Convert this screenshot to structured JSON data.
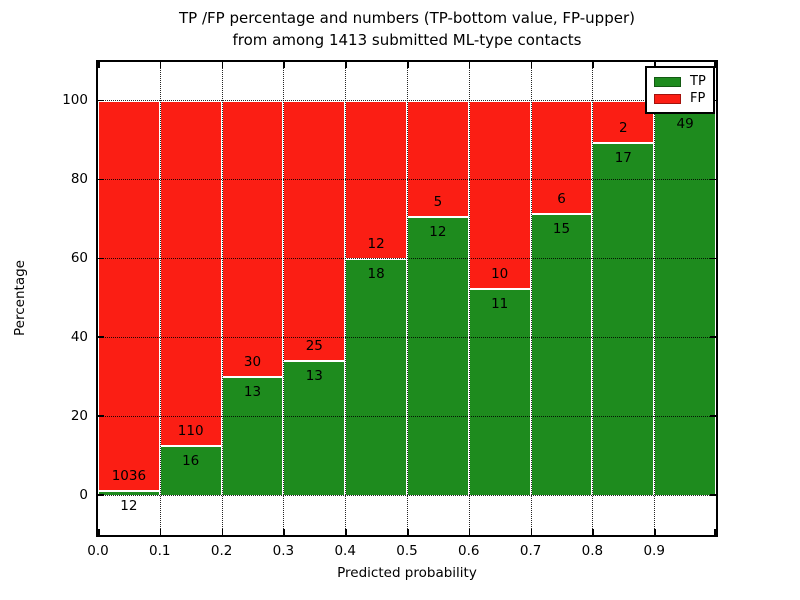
{
  "title": {
    "line1": "TP /FP percentage and numbers (TP-bottom value, FP-upper)",
    "line2": "from among 1413 submitted ML-type contacts"
  },
  "x_axis": {
    "label": "Predicted probability",
    "tick_labels": [
      "0.0",
      "0.1",
      "0.2",
      "0.3",
      "0.4",
      "0.5",
      "0.6",
      "0.7",
      "0.8",
      "0.9"
    ]
  },
  "y_axis": {
    "label": "Percentage",
    "tick_labels": [
      "0",
      "20",
      "40",
      "60",
      "80",
      "100"
    ],
    "tick_values": [
      0,
      20,
      40,
      60,
      80,
      100
    ]
  },
  "legend": {
    "items": [
      {
        "label": "TP",
        "color": "#1e8b1e"
      },
      {
        "label": "FP",
        "color": "#fb1e14"
      }
    ]
  },
  "colors": {
    "tp": "#1e8b1e",
    "fp": "#fb1e14",
    "bar_edge": "#ffffff",
    "grid": "#000000",
    "background": "#ffffff"
  },
  "chart_data": {
    "type": "bar",
    "stacked": true,
    "title": "TP /FP percentage and numbers (TP-bottom value, FP-upper) from among 1413 submitted ML-type contacts",
    "total_contacts": 1413,
    "xlabel": "Predicted probability",
    "ylabel": "Percentage",
    "xlim": [
      0.0,
      1.0
    ],
    "ylim": [
      -10,
      110
    ],
    "grid": "dotted",
    "legend_position": "upper right",
    "bin_width": 0.1,
    "series_names": [
      "TP",
      "FP"
    ],
    "bars": [
      {
        "bin_start": 0.0,
        "bin_end": 0.1,
        "tp_count": 12,
        "fp_count": 1036,
        "tp_percent": 1.1
      },
      {
        "bin_start": 0.1,
        "bin_end": 0.2,
        "tp_count": 16,
        "fp_count": 110,
        "tp_percent": 12.7
      },
      {
        "bin_start": 0.2,
        "bin_end": 0.3,
        "tp_count": 13,
        "fp_count": 30,
        "tp_percent": 30.2
      },
      {
        "bin_start": 0.3,
        "bin_end": 0.4,
        "tp_count": 13,
        "fp_count": 25,
        "tp_percent": 34.2
      },
      {
        "bin_start": 0.4,
        "bin_end": 0.5,
        "tp_count": 18,
        "fp_count": 12,
        "tp_percent": 60.0
      },
      {
        "bin_start": 0.5,
        "bin_end": 0.6,
        "tp_count": 12,
        "fp_count": 5,
        "tp_percent": 70.6
      },
      {
        "bin_start": 0.6,
        "bin_end": 0.7,
        "tp_count": 11,
        "fp_count": 10,
        "tp_percent": 52.4
      },
      {
        "bin_start": 0.7,
        "bin_end": 0.8,
        "tp_count": 15,
        "fp_count": 6,
        "tp_percent": 71.4
      },
      {
        "bin_start": 0.8,
        "bin_end": 0.9,
        "tp_count": 17,
        "fp_count": 2,
        "tp_percent": 89.5
      },
      {
        "bin_start": 0.9,
        "bin_end": 1.0,
        "tp_count": 49,
        "fp_count": null,
        "tp_percent": 98.0
      }
    ]
  }
}
